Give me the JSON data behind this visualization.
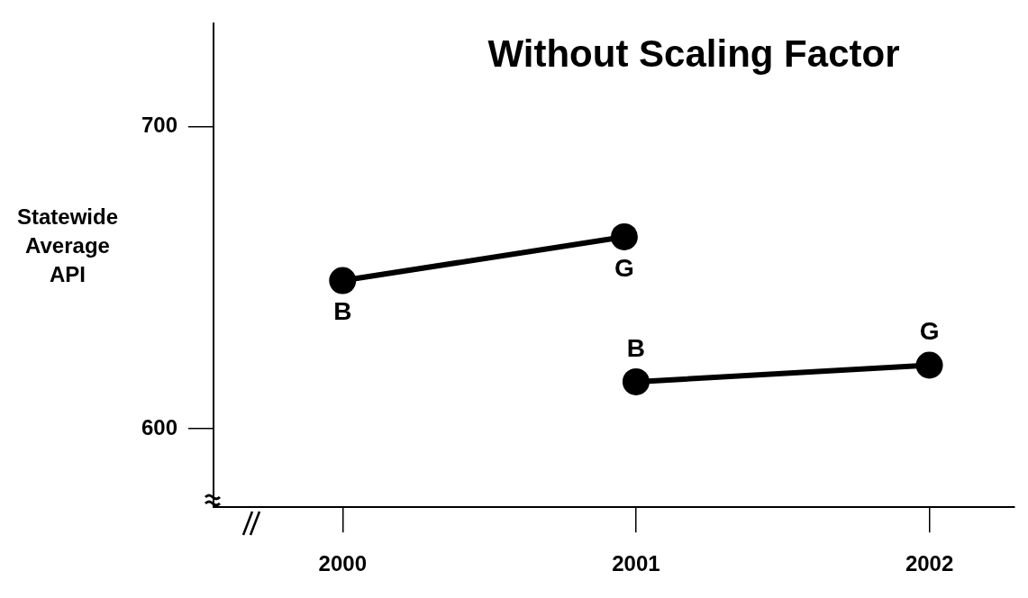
{
  "chart_data": {
    "type": "line",
    "title": "Without Scaling Factor",
    "ylabel": "Statewide Average API",
    "series": [
      {
        "color": "#000000",
        "x": [
          2000,
          2000.96
        ],
        "values": [
          649,
          663.5
        ]
      },
      {
        "color": "#000000",
        "x": [
          2001,
          2002
        ],
        "values": [
          615.5,
          621
        ]
      }
    ],
    "annotations": [
      {
        "text": "B",
        "x": 2000,
        "y": 649
      },
      {
        "text": "G",
        "x": 2000.96,
        "y": 663.5
      },
      {
        "text": "B",
        "x": 2001,
        "y": 615.5
      },
      {
        "text": "G",
        "x": 2002,
        "y": 621
      }
    ],
    "xlim": [
      1999.56,
      2002.29
    ],
    "xticks": [
      2000,
      2001,
      2002
    ],
    "ylim": [
      574,
      734
    ],
    "yticks": [
      600,
      700
    ],
    "grid": false,
    "legend": false,
    "marker": "circle",
    "line_style": "solid"
  }
}
